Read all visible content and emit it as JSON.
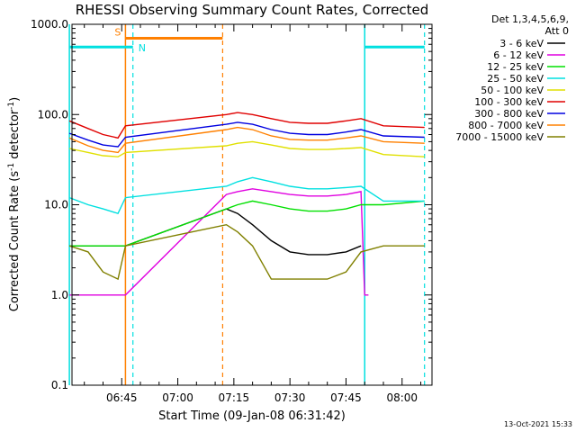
{
  "chart_data": {
    "type": "line",
    "title": "RHESSI Observing Summary Count Rates, Corrected",
    "xlabel": "Start Time (09-Jan-08 06:31:42)",
    "ylabel": "Corrected Count Rate (s",
    "ylabel_sup": "-1",
    "ylabel_mid": " detector",
    "ylabel_sup2": "-1",
    "ylabel_end": ")",
    "yscale": "log",
    "ylim": [
      0.1,
      1000
    ],
    "xlim": [
      "06:31:42",
      "08:08:00"
    ],
    "ytick_labels": [
      "0.1",
      "1.0",
      "10.0",
      "100.0",
      "1000.0"
    ],
    "ytick_values": [
      0.1,
      1,
      10,
      100,
      1000
    ],
    "xtick_labels": [
      "06:45",
      "07:00",
      "07:15",
      "07:30",
      "07:45",
      "08:00"
    ],
    "xtick_values": [
      "06:45",
      "07:00",
      "07:15",
      "07:30",
      "07:45",
      "08:00"
    ],
    "legend_header_1": "Det 1,3,4,5,6,9,",
    "legend_header_2": "Att 0",
    "legend_placement": "right",
    "footer_date": "13-Oct-2021 15:33",
    "series": [
      {
        "name": "3 - 6 keV",
        "color": "#000000",
        "x": [
          "06:31",
          "06:36",
          "06:40",
          "06:44",
          "06:46",
          "07:13",
          "07:16",
          "07:20",
          "07:25",
          "07:30",
          "07:35",
          "07:40",
          "07:45",
          "07:49"
        ],
        "y": [
          3.5,
          3.5,
          3.5,
          3.5,
          3.5,
          9.0,
          8.0,
          6.0,
          4.0,
          3.0,
          2.8,
          2.8,
          3.0,
          3.5
        ]
      },
      {
        "name": "6 - 12 keV",
        "color": "#e000e0",
        "x": [
          "06:31",
          "06:36",
          "06:40",
          "06:44",
          "06:46",
          "07:13",
          "07:16",
          "07:20",
          "07:25",
          "07:30",
          "07:35",
          "07:40",
          "07:45",
          "07:49",
          "07:50",
          "07:51"
        ],
        "y": [
          1.0,
          1.0,
          1.0,
          1.0,
          1.0,
          13,
          14,
          15,
          14,
          13,
          12.5,
          12.5,
          13,
          14,
          1.0,
          1.0
        ]
      },
      {
        "name": "12 - 25 keV",
        "color": "#00e000",
        "x": [
          "06:31",
          "06:36",
          "06:40",
          "06:44",
          "06:46",
          "07:13",
          "07:16",
          "07:20",
          "07:25",
          "07:30",
          "07:35",
          "07:40",
          "07:45",
          "07:49",
          "07:55",
          "08:06"
        ],
        "y": [
          3.5,
          3.5,
          3.5,
          3.5,
          3.5,
          9.0,
          10,
          11,
          10,
          9,
          8.5,
          8.5,
          9,
          10,
          10,
          11
        ]
      },
      {
        "name": "25 - 50 keV",
        "color": "#00e0e0",
        "x": [
          "06:31",
          "06:36",
          "06:40",
          "06:44",
          "06:46",
          "07:13",
          "07:16",
          "07:20",
          "07:25",
          "07:30",
          "07:35",
          "07:40",
          "07:45",
          "07:49",
          "07:55",
          "08:06"
        ],
        "y": [
          12,
          10,
          9,
          8,
          12,
          16,
          18,
          20,
          18,
          16,
          15,
          15,
          15.5,
          16,
          11,
          11
        ]
      },
      {
        "name": "50 - 100 keV",
        "color": "#e0e000",
        "x": [
          "06:31",
          "06:36",
          "06:40",
          "06:44",
          "06:46",
          "07:13",
          "07:16",
          "07:20",
          "07:25",
          "07:30",
          "07:35",
          "07:40",
          "07:45",
          "07:49",
          "07:55",
          "08:06"
        ],
        "y": [
          42,
          38,
          35,
          34,
          38,
          45,
          48,
          50,
          46,
          42,
          41,
          41,
          42,
          43,
          36,
          34
        ]
      },
      {
        "name": "100 - 300 keV",
        "color": "#e00000",
        "x": [
          "06:31",
          "06:36",
          "06:40",
          "06:44",
          "06:46",
          "07:13",
          "07:16",
          "07:20",
          "07:25",
          "07:30",
          "07:35",
          "07:40",
          "07:45",
          "07:49",
          "07:55",
          "08:06"
        ],
        "y": [
          85,
          70,
          60,
          55,
          75,
          100,
          105,
          100,
          90,
          82,
          80,
          80,
          85,
          90,
          75,
          72
        ]
      },
      {
        "name": "300 - 800 keV",
        "color": "#0000e0",
        "x": [
          "06:31",
          "06:36",
          "06:40",
          "06:44",
          "06:46",
          "07:13",
          "07:16",
          "07:20",
          "07:25",
          "07:30",
          "07:35",
          "07:40",
          "07:45",
          "07:49",
          "07:55",
          "08:06"
        ],
        "y": [
          62,
          52,
          46,
          44,
          56,
          78,
          82,
          78,
          68,
          62,
          60,
          60,
          64,
          68,
          58,
          56
        ]
      },
      {
        "name": "800 - 7000 keV",
        "color": "#ff8000",
        "x": [
          "06:31",
          "06:36",
          "06:40",
          "06:44",
          "06:46",
          "07:13",
          "07:16",
          "07:20",
          "07:25",
          "07:30",
          "07:35",
          "07:40",
          "07:45",
          "07:49",
          "07:55",
          "08:06"
        ],
        "y": [
          55,
          45,
          40,
          38,
          48,
          68,
          72,
          68,
          58,
          53,
          52,
          52,
          55,
          58,
          50,
          48
        ]
      },
      {
        "name": "7000 - 15000 keV",
        "color": "#808000",
        "x": [
          "06:31",
          "06:36",
          "06:40",
          "06:44",
          "06:46",
          "07:13",
          "07:16",
          "07:20",
          "07:25",
          "07:30",
          "07:35",
          "07:40",
          "07:45",
          "07:49",
          "07:55",
          "08:06"
        ],
        "y": [
          3.5,
          3.0,
          1.8,
          1.5,
          3.5,
          6.0,
          5.0,
          3.5,
          1.5,
          1.5,
          1.5,
          1.5,
          1.8,
          3.0,
          3.5,
          3.5
        ]
      }
    ],
    "markers": [
      {
        "label": "S",
        "color": "#ff8000",
        "start": "06:46",
        "end": "07:12",
        "value": 700,
        "line_style": "solid",
        "start_style": "solid",
        "end_style": "dashed"
      },
      {
        "label": "N",
        "color": "#00e0e0",
        "start": "06:31",
        "end": "06:48",
        "value": 560,
        "line_style": "solid",
        "start_style": "solid",
        "end_style": "dashed"
      },
      {
        "label": "",
        "color": "#00e0e0",
        "start": "07:50",
        "end": "08:06",
        "value": 560,
        "line_style": "solid",
        "start_style": "solid",
        "end_style": "dashed"
      }
    ]
  }
}
